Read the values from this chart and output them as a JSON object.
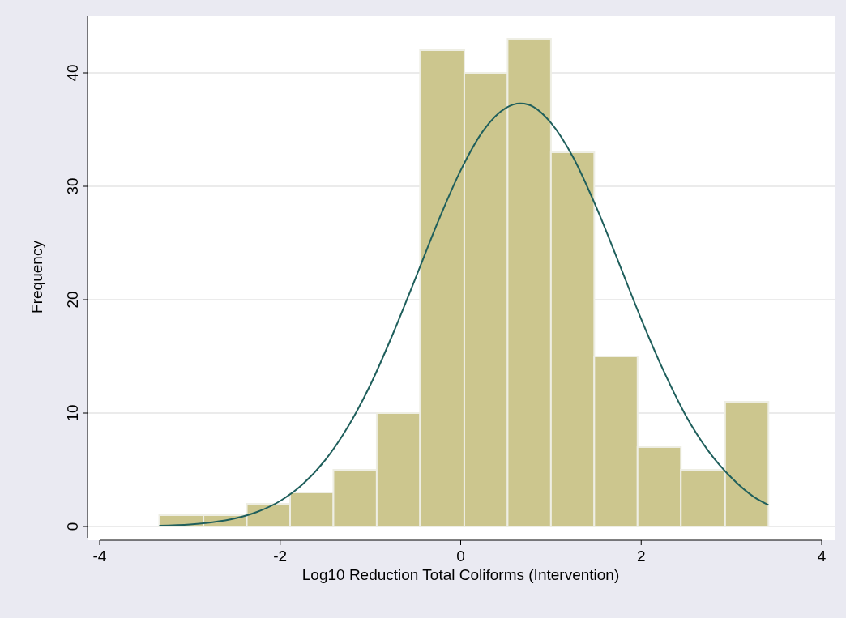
{
  "chart_data": {
    "type": "histogram",
    "xlabel": "Log10 Reduction Total Coliforms (Intervention)",
    "ylabel": "Frequency",
    "bins": [
      -3.34,
      -2.85,
      -2.37,
      -1.89,
      -1.41,
      -0.93,
      -0.45,
      0.04,
      0.52,
      1.0,
      1.48,
      1.96,
      2.44,
      2.93,
      3.41
    ],
    "values": [
      1,
      1,
      2,
      3,
      5,
      10,
      42,
      40,
      43,
      33,
      15,
      7,
      5,
      11
    ],
    "color": "#ccc68e",
    "series": [
      {
        "type": "line",
        "color": "#1f5f5c",
        "x": [
          -3.34,
          -3.0,
          -2.75,
          -2.5,
          -2.25,
          -2.0,
          -1.75,
          -1.5,
          -1.25,
          -1.0,
          -0.75,
          -0.5,
          -0.25,
          0,
          0.25,
          0.5,
          0.66,
          0.75,
          1.0,
          1.25,
          1.5,
          1.75,
          2.0,
          2.25,
          2.5,
          2.75,
          3.0,
          3.25,
          3.41
        ],
        "values": [
          0.07,
          0.18,
          0.37,
          0.71,
          1.3,
          2.25,
          3.73,
          5.86,
          8.78,
          12.5,
          17.0,
          21.9,
          26.9,
          31.4,
          34.9,
          36.9,
          37.3,
          37.2,
          35.6,
          32.5,
          28.2,
          23.3,
          18.3,
          13.7,
          9.7,
          6.6,
          4.3,
          2.6,
          1.9
        ]
      }
    ],
    "xlim": [
      -4,
      4
    ],
    "xticks": [
      -4,
      -2,
      0,
      2,
      4
    ],
    "ylim": [
      -1,
      45
    ],
    "yticks": [
      0,
      10,
      20,
      30,
      40
    ],
    "grid": "y"
  }
}
